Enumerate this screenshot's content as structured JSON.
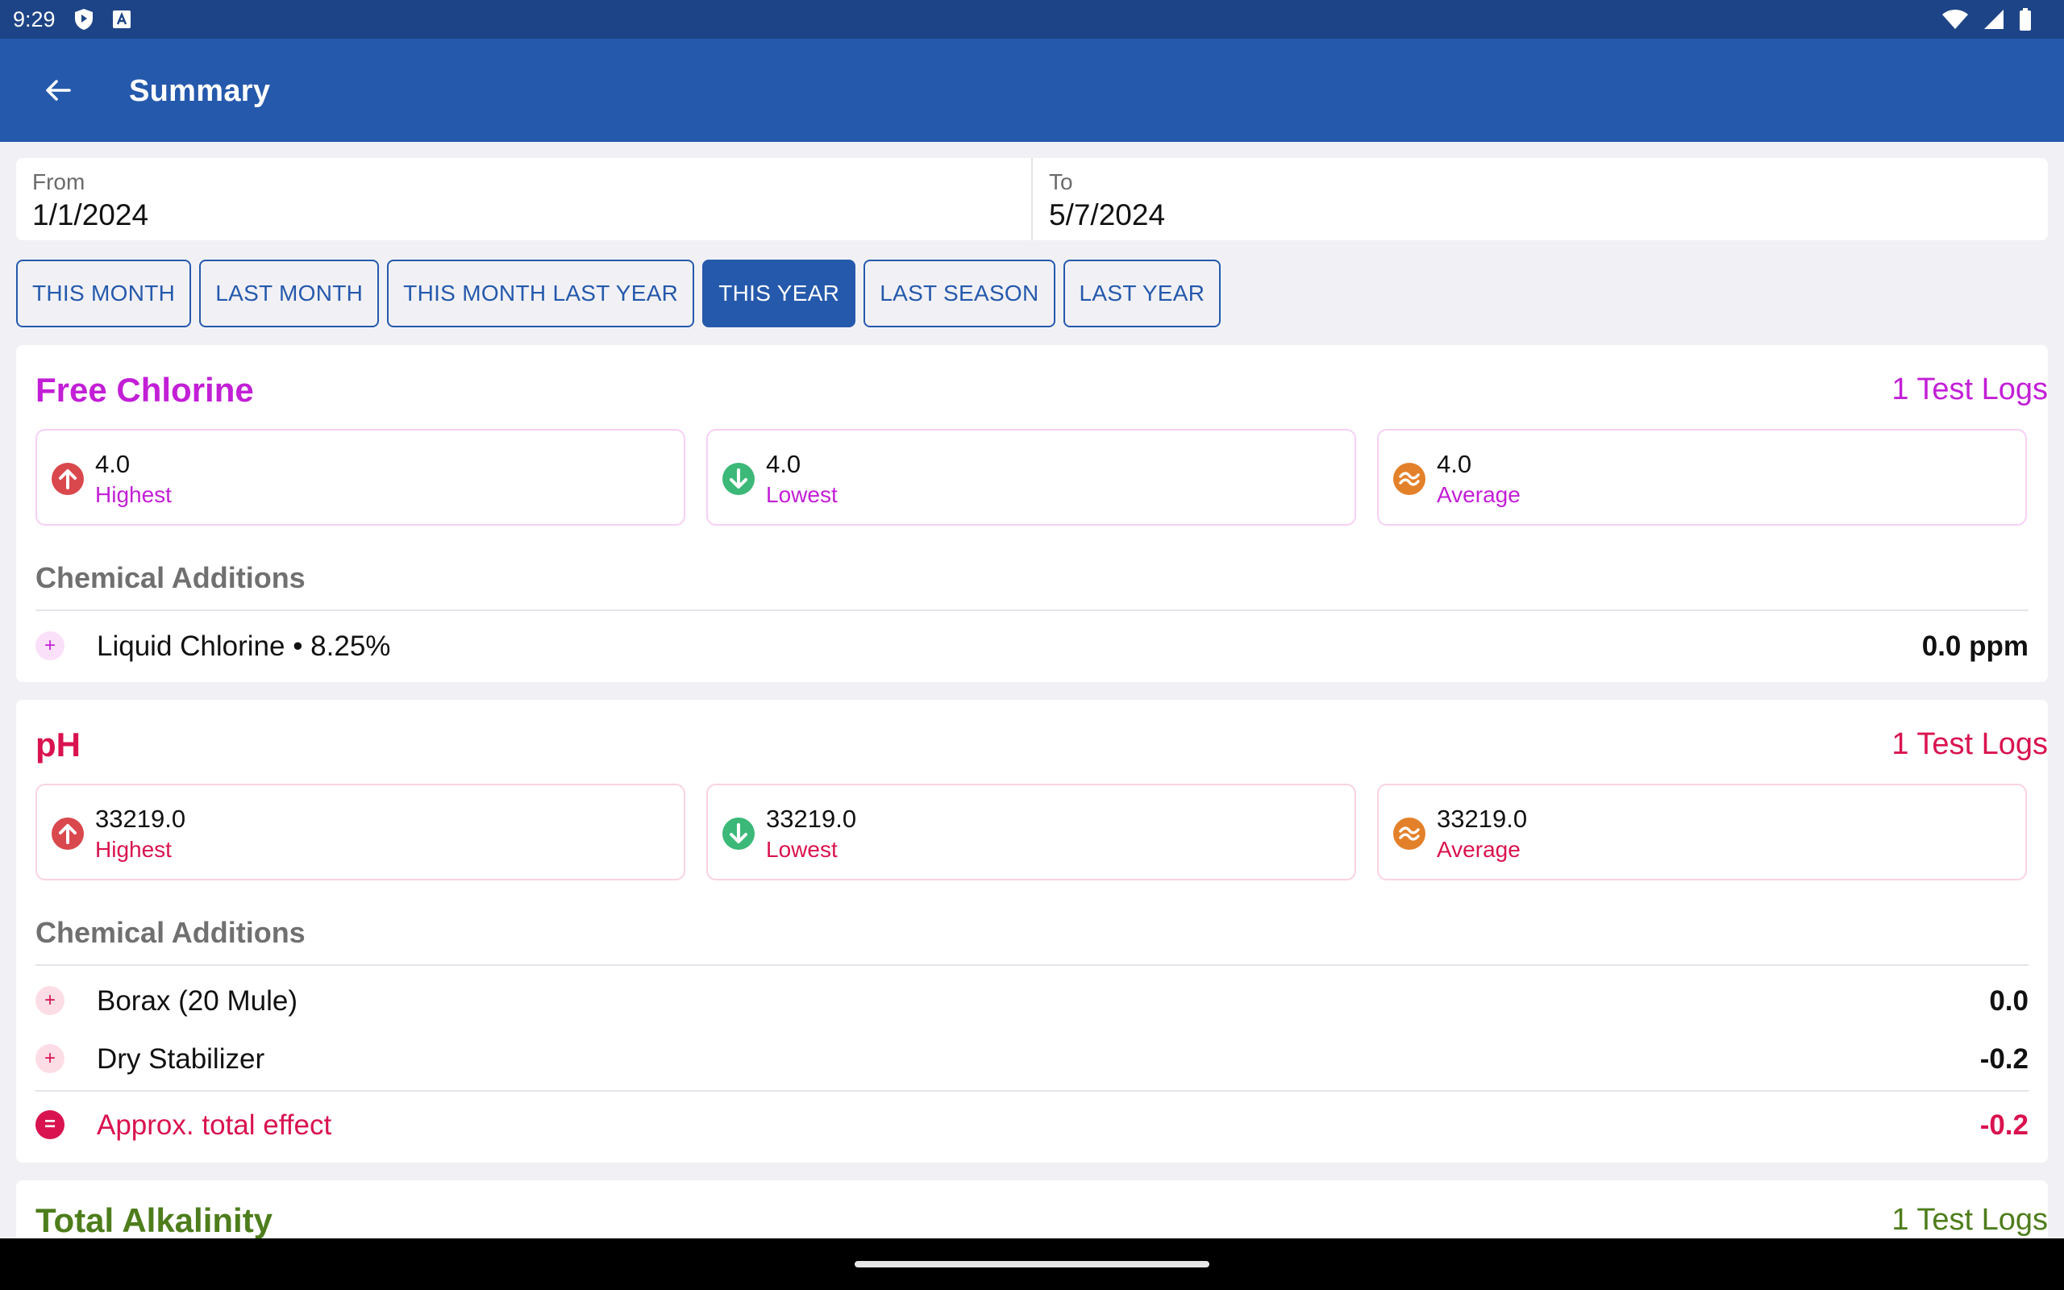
{
  "status_bar": {
    "time": "9:29",
    "icons": [
      "shield-icon",
      "keyboard-a-icon",
      "wifi-icon",
      "signal-icon",
      "battery-icon"
    ]
  },
  "app_bar": {
    "title": "Summary",
    "back_icon": "arrow-left-icon"
  },
  "date_range": {
    "from": {
      "label": "From",
      "value": "1/1/2024"
    },
    "to": {
      "label": "To",
      "value": "5/7/2024"
    }
  },
  "presets": [
    {
      "label": "THIS MONTH",
      "active": false
    },
    {
      "label": "LAST MONTH",
      "active": false
    },
    {
      "label": "THIS MONTH LAST YEAR",
      "active": false
    },
    {
      "label": "THIS YEAR",
      "active": true
    },
    {
      "label": "LAST SEASON",
      "active": false
    },
    {
      "label": "LAST YEAR",
      "active": false
    }
  ],
  "colors": {
    "status_bar": "#1d4486",
    "app_bar": "#2559ac",
    "free_chlorine": "#c21fd6",
    "ph": "#d9134f",
    "total_alkalinity": "#4e7d1c",
    "highest": "#d9484d",
    "lowest": "#3cb878",
    "average": "#e3812a"
  },
  "sections": {
    "free_chlorine": {
      "title": "Free Chlorine",
      "logs": "1 Test Logs",
      "stats": {
        "highest": {
          "value": "4.0",
          "label": "Highest"
        },
        "lowest": {
          "value": "4.0",
          "label": "Lowest"
        },
        "average": {
          "value": "4.0",
          "label": "Average"
        }
      },
      "chemical_title": "Chemical Additions",
      "additions": [
        {
          "name": "Liquid Chlorine • 8.25%",
          "amount": "0.0 ppm"
        }
      ]
    },
    "ph": {
      "title": "pH",
      "logs": "1 Test Logs",
      "stats": {
        "highest": {
          "value": "33219.0",
          "label": "Highest"
        },
        "lowest": {
          "value": "33219.0",
          "label": "Lowest"
        },
        "average": {
          "value": "33219.0",
          "label": "Average"
        }
      },
      "chemical_title": "Chemical Additions",
      "additions": [
        {
          "name": "Borax (20 Mule)",
          "amount": "0.0"
        },
        {
          "name": "Dry Stabilizer",
          "amount": "-0.2"
        }
      ],
      "total": {
        "name": "Approx. total effect",
        "amount": "-0.2"
      }
    },
    "total_alkalinity": {
      "title": "Total Alkalinity",
      "logs": "1 Test Logs"
    }
  }
}
